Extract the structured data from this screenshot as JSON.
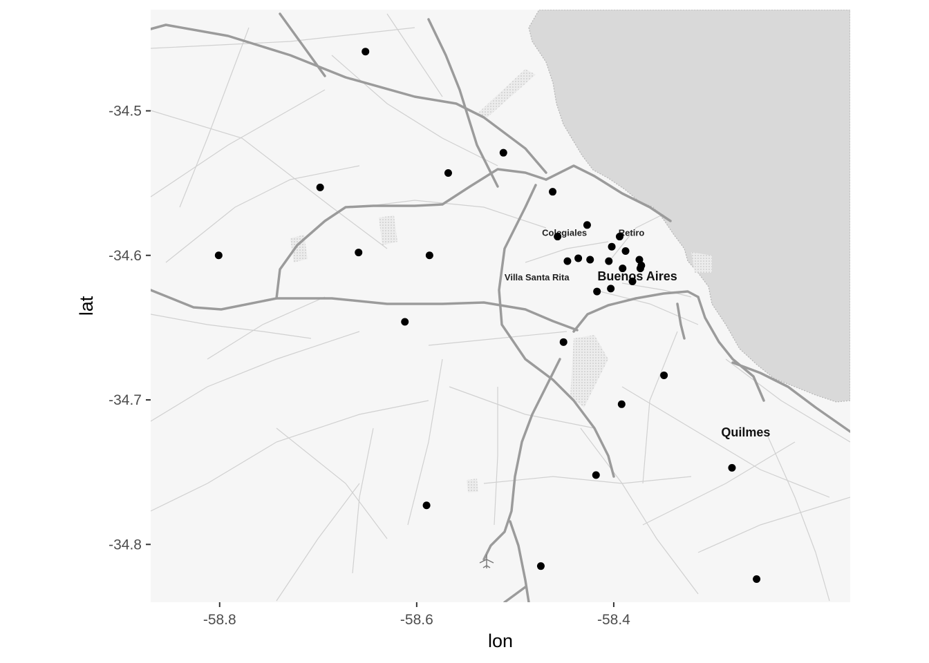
{
  "chart_data": {
    "type": "scatter",
    "xlabel": "lon",
    "ylabel": "lat",
    "xlim": [
      -58.87,
      -58.16
    ],
    "ylim": [
      -34.84,
      -34.43
    ],
    "x_ticks": [
      {
        "value": -58.8,
        "label": "-58.8"
      },
      {
        "value": -58.6,
        "label": "-58.6"
      },
      {
        "value": -58.4,
        "label": "-58.4"
      }
    ],
    "y_ticks": [
      {
        "value": -34.5,
        "label": "-34.5"
      },
      {
        "value": -34.6,
        "label": "-34.6"
      },
      {
        "value": -34.7,
        "label": "-34.7"
      },
      {
        "value": -34.8,
        "label": "-34.8"
      }
    ],
    "grid": false,
    "basemap": {
      "style": "greyscale road map",
      "water_color": "#d9d9d9",
      "land_color": "#f5f5f5",
      "major_road_color": "#9a9a9a",
      "minor_road_color": "#cfcfcf"
    },
    "place_labels": [
      {
        "text": "Colegiales",
        "lon": -58.45,
        "lat": -34.584,
        "size": "small"
      },
      {
        "text": "Retiro",
        "lon": -58.382,
        "lat": -34.584,
        "size": "small"
      },
      {
        "text": "Villa Santa Rita",
        "lon": -58.478,
        "lat": -34.615,
        "size": "small"
      },
      {
        "text": "Buenos Aires",
        "lon": -58.376,
        "lat": -34.614,
        "size": "large"
      },
      {
        "text": "Quilmes",
        "lon": -58.266,
        "lat": -34.722,
        "size": "large"
      }
    ],
    "point_color": "#000000",
    "points": [
      {
        "lon": -58.652,
        "lat": -34.459
      },
      {
        "lon": -58.512,
        "lat": -34.529
      },
      {
        "lon": -58.698,
        "lat": -34.553
      },
      {
        "lon": -58.568,
        "lat": -34.543
      },
      {
        "lon": -58.462,
        "lat": -34.556
      },
      {
        "lon": -58.427,
        "lat": -34.579
      },
      {
        "lon": -58.457,
        "lat": -34.587
      },
      {
        "lon": -58.394,
        "lat": -34.587
      },
      {
        "lon": -58.402,
        "lat": -34.594
      },
      {
        "lon": -58.388,
        "lat": -34.597
      },
      {
        "lon": -58.801,
        "lat": -34.6
      },
      {
        "lon": -58.659,
        "lat": -34.598
      },
      {
        "lon": -58.587,
        "lat": -34.6
      },
      {
        "lon": -58.447,
        "lat": -34.604
      },
      {
        "lon": -58.436,
        "lat": -34.602
      },
      {
        "lon": -58.424,
        "lat": -34.603
      },
      {
        "lon": -58.405,
        "lat": -34.604
      },
      {
        "lon": -58.374,
        "lat": -34.603
      },
      {
        "lon": -58.372,
        "lat": -34.607
      },
      {
        "lon": -58.391,
        "lat": -34.609
      },
      {
        "lon": -58.373,
        "lat": -34.609
      },
      {
        "lon": -58.381,
        "lat": -34.618
      },
      {
        "lon": -58.417,
        "lat": -34.625
      },
      {
        "lon": -58.403,
        "lat": -34.623
      },
      {
        "lon": -58.612,
        "lat": -34.646
      },
      {
        "lon": -58.451,
        "lat": -34.66
      },
      {
        "lon": -58.349,
        "lat": -34.683
      },
      {
        "lon": -58.392,
        "lat": -34.703
      },
      {
        "lon": -58.28,
        "lat": -34.747
      },
      {
        "lon": -58.418,
        "lat": -34.752
      },
      {
        "lon": -58.59,
        "lat": -34.773
      },
      {
        "lon": -58.474,
        "lat": -34.815
      },
      {
        "lon": -58.255,
        "lat": -34.824
      }
    ]
  }
}
